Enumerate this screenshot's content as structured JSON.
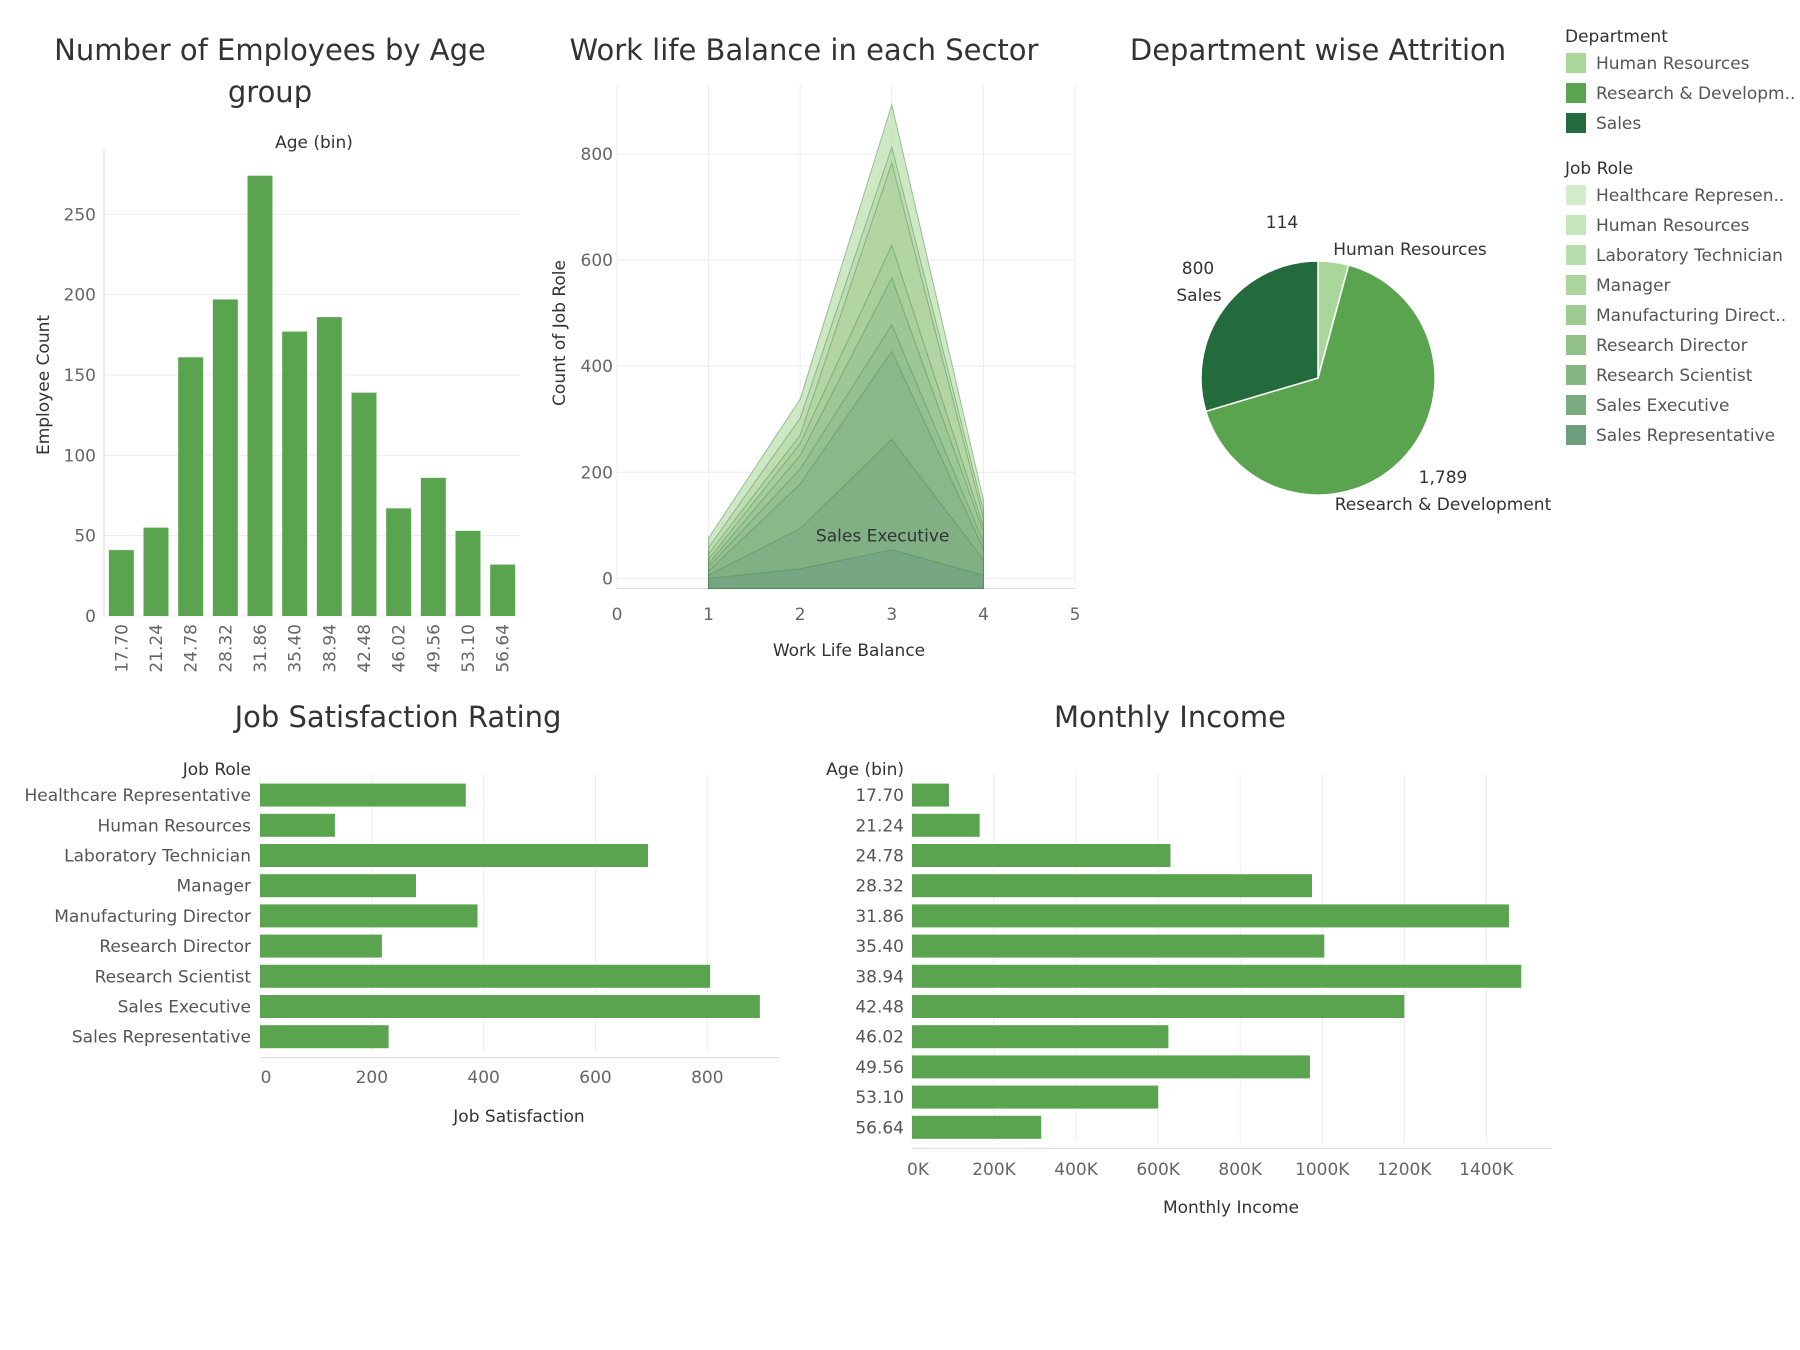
{
  "chart_data": [
    {
      "id": "age",
      "type": "bar",
      "title_lines": [
        "Number of Employees by Age",
        "group"
      ],
      "header": "Age (bin)",
      "xlabel": "",
      "ylabel": "Employee Count",
      "categories": [
        "17.70",
        "21.24",
        "24.78",
        "28.32",
        "31.86",
        "35.40",
        "38.94",
        "42.48",
        "46.02",
        "49.56",
        "53.10",
        "56.64"
      ],
      "values": [
        41,
        55,
        161,
        197,
        274,
        177,
        186,
        139,
        67,
        86,
        53,
        32
      ],
      "ylim": [
        0,
        290
      ],
      "yticks": [
        0,
        50,
        100,
        150,
        200,
        250
      ],
      "grid": true,
      "color": "#5aa450"
    },
    {
      "id": "wlb",
      "type": "area",
      "title": "Work life Balance in each Sector",
      "xlabel": "Work Life Balance",
      "ylabel": "Count of Job Role",
      "xlim": [
        0,
        5
      ],
      "ylim": [
        -20,
        930
      ],
      "xticks": [
        0,
        1,
        2,
        3,
        4,
        5
      ],
      "yticks": [
        0,
        200,
        400,
        600,
        800
      ],
      "x": [
        1,
        2,
        3,
        4
      ],
      "stack_totals": [
        [
          0,
          18,
          54,
          6
        ],
        [
          6,
          94,
          262,
          35
        ],
        [
          14,
          178,
          428,
          56
        ],
        [
          22,
          206,
          478,
          69
        ],
        [
          28,
          232,
          566,
          88
        ],
        [
          36,
          254,
          628,
          98
        ],
        [
          46,
          270,
          783,
          114
        ],
        [
          58,
          302,
          813,
          128
        ],
        [
          76,
          338,
          893,
          148
        ]
      ],
      "series_colors": [
        "#6f9f7f",
        "#7aaa82",
        "#82b385",
        "#8dbb8a",
        "#96c290",
        "#9fc895",
        "#a7cd99",
        "#b0d4a0",
        "#bfe0b0"
      ],
      "annotation": "Sales Executive",
      "grid": true
    },
    {
      "id": "attrition",
      "type": "pie",
      "title": "Department wise Attrition",
      "slices": [
        {
          "label": "Human Resources",
          "value": 114,
          "value_label": "114",
          "color": "#a9d79a"
        },
        {
          "label": "Research & Development",
          "value": 1789,
          "value_label": "1,789",
          "color": "#5aa450"
        },
        {
          "label": "Sales",
          "value": 800,
          "value_label": "800",
          "color": "#236a3c"
        }
      ]
    },
    {
      "id": "jobsat",
      "type": "bar",
      "orientation": "horizontal",
      "title": "Job Satisfaction Rating",
      "header": "Job Role",
      "xlabel": "Job Satisfaction",
      "categories": [
        "Healthcare Representative",
        "Human Resources",
        "Laboratory Technician",
        "Manager",
        "Manufacturing Director",
        "Research Director",
        "Research Scientist",
        "Sales Executive",
        "Sales Representative"
      ],
      "values": [
        368,
        134,
        694,
        279,
        389,
        218,
        805,
        894,
        230
      ],
      "xlim": [
        0,
        930
      ],
      "xticks": [
        0,
        200,
        400,
        600,
        800
      ],
      "grid": true,
      "color": "#5aa450"
    },
    {
      "id": "income",
      "type": "bar",
      "orientation": "horizontal",
      "title": "Monthly Income",
      "header": "Age (bin)",
      "xlabel": "Monthly Income",
      "categories": [
        "17.70",
        "21.24",
        "24.78",
        "28.32",
        "31.86",
        "35.40",
        "38.94",
        "42.48",
        "46.02",
        "49.56",
        "53.10",
        "56.64"
      ],
      "values": [
        90000,
        165000,
        630000,
        975000,
        1455000,
        1005000,
        1485000,
        1200000,
        625000,
        970000,
        600000,
        315000
      ],
      "xlim": [
        0,
        1560000
      ],
      "xticks": [
        0,
        200000,
        400000,
        600000,
        800000,
        1000000,
        1200000,
        1400000
      ],
      "xtick_labels": [
        "0K",
        "200K",
        "400K",
        "600K",
        "800K",
        "1000K",
        "1200K",
        "1400K"
      ],
      "grid": true,
      "color": "#5aa450"
    }
  ],
  "legends": {
    "department": {
      "title": "Department",
      "items": [
        {
          "label": "Human Resources",
          "color": "#a9d79a"
        },
        {
          "label": "Research & Developm..",
          "color": "#5aa450"
        },
        {
          "label": "Sales",
          "color": "#236a3c"
        }
      ]
    },
    "job_role": {
      "title": "Job Role",
      "items": [
        {
          "label": "Healthcare Represen..",
          "color": "#d3eccc"
        },
        {
          "label": "Human Resources",
          "color": "#c5e5bb"
        },
        {
          "label": "Laboratory Technician",
          "color": "#b7deab"
        },
        {
          "label": "Manager",
          "color": "#aad59e"
        },
        {
          "label": "Manufacturing Direct..",
          "color": "#9dcb92"
        },
        {
          "label": "Research Director",
          "color": "#91c188"
        },
        {
          "label": "Research Scientist",
          "color": "#85b782"
        },
        {
          "label": "Sales Executive",
          "color": "#79ad80"
        },
        {
          "label": "Sales Representative",
          "color": "#6e9f7c"
        }
      ]
    }
  }
}
